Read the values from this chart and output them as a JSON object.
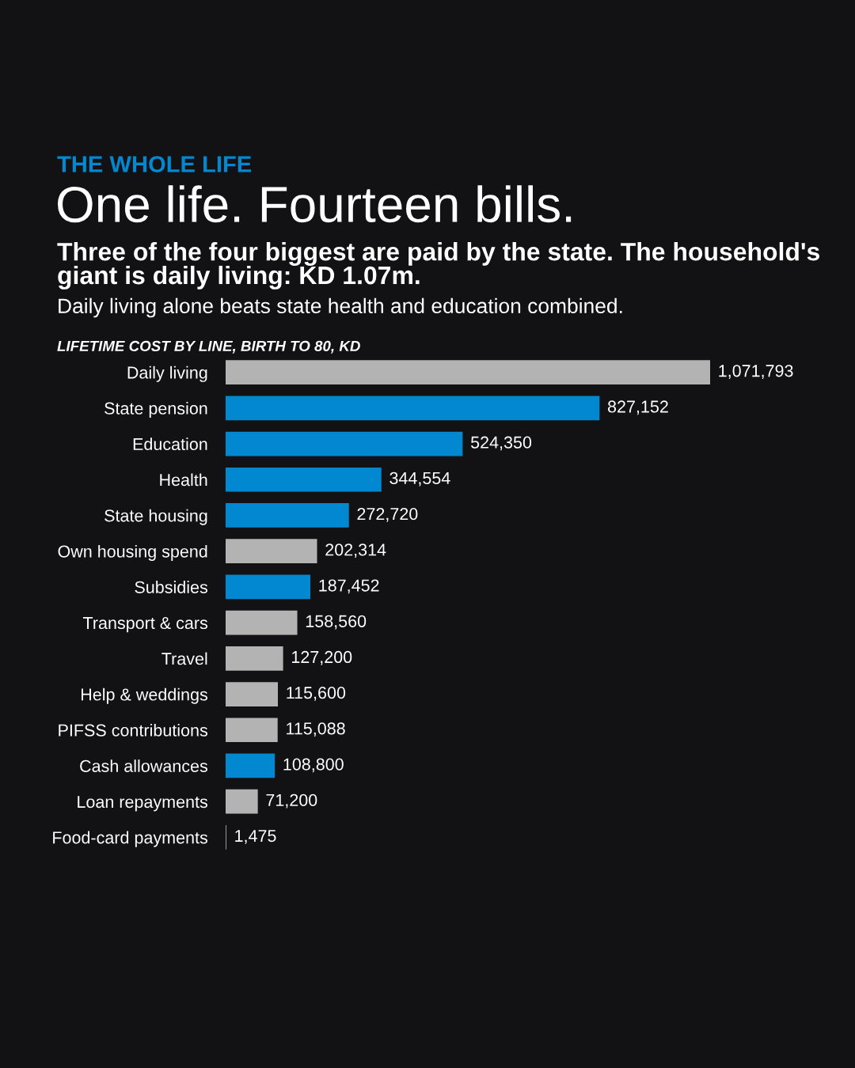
{
  "chart_data": {
    "type": "bar",
    "orientation": "horizontal",
    "title": "One life. Fourteen bills.",
    "subtitle": "Three of the four biggest are paid by the state. The household's giant is daily living: KD 1.07m.",
    "annotations": [
      "THE WHOLE LIFE",
      "Daily living alone beats state health and education combined.",
      "LIFETIME COST BY LINE, BIRTH TO 80, KD"
    ],
    "categories": [
      "Daily living",
      "State pension",
      "Education",
      "Health",
      "State housing",
      "Own housing spend",
      "Subsidies",
      "Transport & cars",
      "Travel",
      "Help & weddings",
      "PIFSS contributions",
      "Cash allowances",
      "Loan repayments",
      "Food-card payments"
    ],
    "values": [
      1071793,
      827152,
      524350,
      344554,
      272720,
      202314,
      187452,
      158560,
      127200,
      115600,
      115088,
      108800,
      71200,
      1475
    ],
    "colors": [
      "#b3b3b3",
      "#0288d1",
      "#0288d1",
      "#0288d1",
      "#0288d1",
      "#b3b3b3",
      "#0288d1",
      "#b3b3b3",
      "#b3b3b3",
      "#b3b3b3",
      "#b3b3b3",
      "#0288d1",
      "#b3b3b3",
      "#b3b3b3"
    ],
    "value_labels": [
      "1,071,793",
      "827,152",
      "524,350",
      "344,554",
      "272,720",
      "202,314",
      "187,452",
      "158,560",
      "127,200",
      "115,600",
      "115,088",
      "108,800",
      "71,200",
      "1,475"
    ],
    "grid": false,
    "legend": false
  }
}
